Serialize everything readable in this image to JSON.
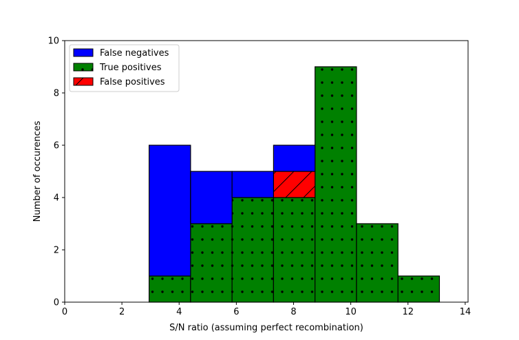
{
  "chart_data": {
    "type": "bar",
    "subtype": "stacked-histogram",
    "title": "",
    "xlabel": "S/N ratio (assuming perfect recombination)",
    "ylabel": "Number of occurences",
    "xlim": [
      0,
      14.1
    ],
    "ylim": [
      0,
      10
    ],
    "xticks": [
      0,
      2,
      4,
      6,
      8,
      10,
      12,
      14
    ],
    "yticks": [
      0,
      2,
      4,
      6,
      8,
      10
    ],
    "grid": false,
    "legend_position": "top-left",
    "bins": [
      [
        2.95,
        4.4
      ],
      [
        4.4,
        5.85
      ],
      [
        5.85,
        7.3
      ],
      [
        7.3,
        8.75
      ],
      [
        8.75,
        10.2
      ],
      [
        10.2,
        11.65
      ],
      [
        11.65,
        13.1
      ]
    ],
    "series": [
      {
        "name": "True positives",
        "color": "#008000",
        "hatch": "dots",
        "values": [
          1,
          3,
          4,
          4,
          9,
          3,
          1
        ]
      },
      {
        "name": "False positives",
        "color": "#ff0000",
        "hatch": "diagonal",
        "values": [
          0,
          0,
          0,
          1,
          0,
          0,
          0
        ]
      },
      {
        "name": "False negatives",
        "color": "#0000ff",
        "hatch": "none",
        "values": [
          5,
          2,
          1,
          1,
          0,
          0,
          0
        ]
      }
    ],
    "legend_order": [
      "False negatives",
      "True positives",
      "False positives"
    ]
  }
}
